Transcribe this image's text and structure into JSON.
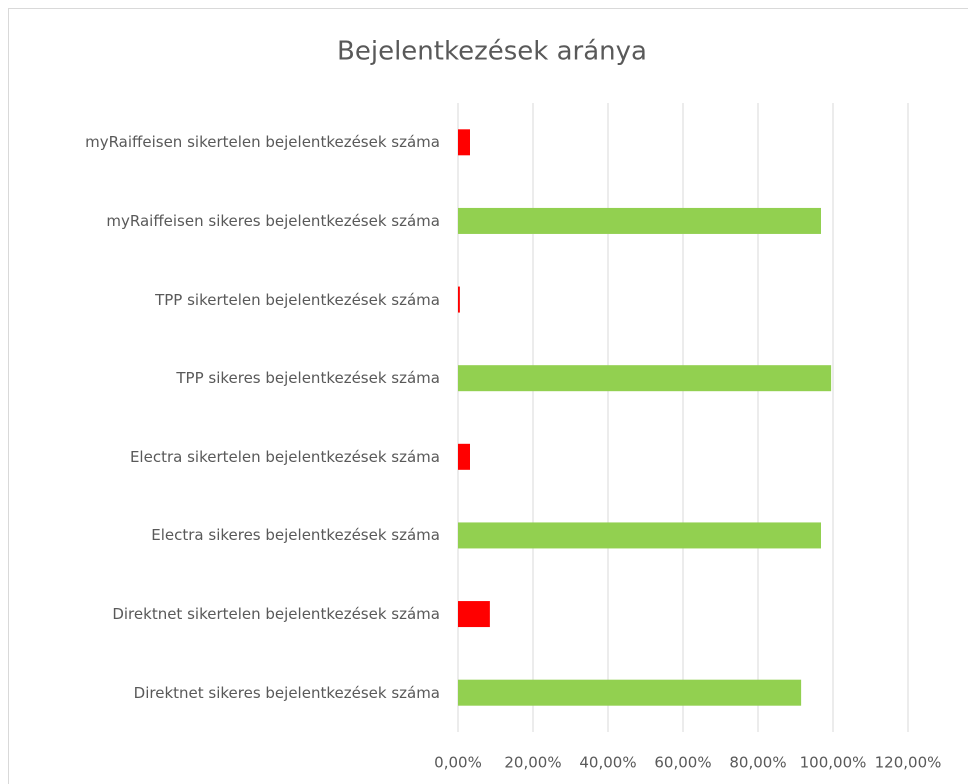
{
  "chart_data": {
    "type": "bar",
    "orientation": "horizontal",
    "title": "Bejelentkezések aránya",
    "categories": [
      "myRaiffeisen sikertelen bejelentkezések száma",
      "myRaiffeisen sikeres bejelentkezések száma",
      "TPP sikertelen bejelentkezések száma",
      "TPP sikeres bejelentkezések száma",
      "Electra sikertelen bejelentkezések száma",
      "Electra sikeres bejelentkezések száma",
      "Direktnet sikertelen bejelentkezések száma",
      "Direktnet sikeres bejelentkezések száma"
    ],
    "values": [
      3.2,
      96.8,
      0.5,
      99.5,
      3.2,
      96.8,
      8.5,
      91.5
    ],
    "colors": [
      "#ff0000",
      "#92d050",
      "#ff0000",
      "#92d050",
      "#ff0000",
      "#92d050",
      "#ff0000",
      "#92d050"
    ],
    "xlim": [
      0,
      120
    ],
    "xticks": [
      {
        "value": 0,
        "label": "0,00%"
      },
      {
        "value": 20,
        "label": "20,00%"
      },
      {
        "value": 40,
        "label": "40,00%"
      },
      {
        "value": 60,
        "label": "60,00%"
      },
      {
        "value": 80,
        "label": "80,00%"
      },
      {
        "value": 100,
        "label": "100,00%"
      },
      {
        "value": 120,
        "label": "120,00%"
      }
    ],
    "grid": true
  }
}
